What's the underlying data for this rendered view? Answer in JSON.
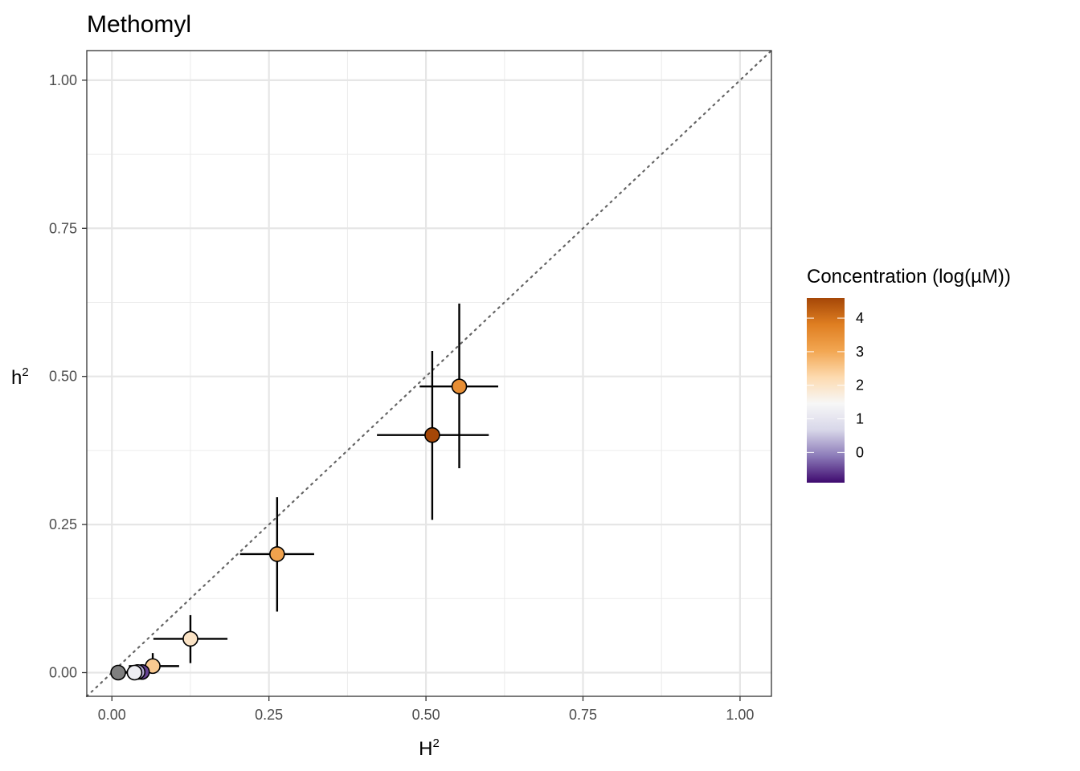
{
  "chart_data": {
    "type": "scatter",
    "title": "Methomyl",
    "xlabel": "H",
    "xlabel_sup": "2",
    "ylabel": "h",
    "ylabel_sup": "2",
    "xlim": [
      -0.04,
      1.05
    ],
    "ylim": [
      -0.04,
      1.05
    ],
    "x_ticks": [
      0.0,
      0.25,
      0.5,
      0.75,
      1.0
    ],
    "x_tick_labels": [
      "0.00",
      "0.25",
      "0.50",
      "0.75",
      "1.00"
    ],
    "y_ticks": [
      0.0,
      0.25,
      0.5,
      0.75,
      1.0
    ],
    "y_tick_labels": [
      "0.00",
      "0.25",
      "0.50",
      "0.75",
      "1.00"
    ],
    "grid": true,
    "reference_line": {
      "type": "identity",
      "style": "dotted",
      "color": "#666666"
    },
    "points": [
      {
        "x": 0.553,
        "y": 0.483,
        "xerr": [
          0.49,
          0.615
        ],
        "yerr": [
          0.345,
          0.623
        ],
        "conc": 3.5
      },
      {
        "x": 0.51,
        "y": 0.401,
        "xerr": [
          0.422,
          0.6
        ],
        "yerr": [
          0.258,
          0.543
        ],
        "conc": 4.6
      },
      {
        "x": 0.263,
        "y": 0.2,
        "xerr": [
          0.204,
          0.322
        ],
        "yerr": [
          0.103,
          0.296
        ],
        "conc": 3.1
      },
      {
        "x": 0.125,
        "y": 0.057,
        "xerr": [
          0.066,
          0.184
        ],
        "yerr": [
          0.016,
          0.097
        ],
        "conc": 2.0
      },
      {
        "x": 0.065,
        "y": 0.011,
        "xerr": [
          0.027,
          0.107
        ],
        "yerr": [
          0.0,
          0.033
        ],
        "conc": 2.5
      },
      {
        "x": 0.048,
        "y": 0.001,
        "xerr": [
          0.03,
          0.07
        ],
        "yerr": [
          0.0,
          0.01
        ],
        "conc": -0.5
      },
      {
        "x": 0.041,
        "y": 0.001,
        "xerr": [
          0.022,
          0.062
        ],
        "yerr": [
          0.0,
          0.008
        ],
        "conc": 0.3
      },
      {
        "x": 0.036,
        "y": 0.0,
        "xerr": [
          0.018,
          0.055
        ],
        "yerr": [
          0.0,
          0.006
        ],
        "conc": 1.2
      },
      {
        "x": 0.01,
        "y": 0.0,
        "xerr": [
          0.0,
          0.02
        ],
        "yerr": [
          0.0,
          0.004
        ],
        "conc": null
      }
    ],
    "na_color": "#7f7f7f",
    "legend": {
      "title": "Concentration (log(µM))",
      "placement": "right",
      "range": [
        -0.9,
        4.6
      ],
      "ticks": [
        0,
        1,
        2,
        3,
        4
      ],
      "tick_labels": [
        "0",
        "1",
        "2",
        "3",
        "4"
      ],
      "colors": [
        "#3f0a6f",
        "#8b7ab8",
        "#d8d7e9",
        "#f7f7f7",
        "#fddaaf",
        "#f2a651",
        "#df7e21",
        "#a54707"
      ]
    }
  }
}
